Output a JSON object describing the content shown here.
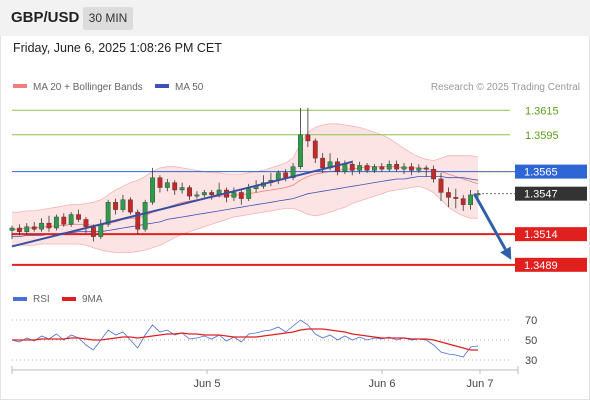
{
  "header": {
    "pair": "GBP/USD",
    "timeframe": "30 MIN",
    "datetime": "Friday, June 6, 2025 1:08:26 PM CET"
  },
  "legend": {
    "ma20_bb": "MA 20 + Bollinger Bands",
    "ma50": "MA 50",
    "credit": "Research © 2025 Trading Central",
    "rsi": "RSI",
    "rsi_ma": "9MA"
  },
  "colors": {
    "bull": "#2e9b48",
    "bear": "#c62828",
    "ma20": "#f08080",
    "ma50": "#3f51b5",
    "band_fill": "#fde4e4",
    "resistance": "#8bc34a",
    "support": "#e01f1f",
    "pivot": "#2e66d6",
    "current": "#333333",
    "trend": "#3a4fa0",
    "arrow": "#2e5fa8",
    "rsi_line": "#4a6fd6",
    "rsi_ma": "#e02020"
  },
  "chart_data": [
    {
      "type": "candlestick",
      "title": "GBP/USD",
      "timeframe": "30 MIN",
      "x_ticks": [
        "Jun 5",
        "Jun 6",
        "Jun 7"
      ],
      "ylim": [
        1.3475,
        1.3625
      ],
      "levels": [
        {
          "value": 1.3615,
          "label": "1.3615",
          "kind": "resistance"
        },
        {
          "value": 1.3595,
          "label": "1.3595",
          "kind": "resistance"
        },
        {
          "value": 1.3565,
          "label": "1.3565",
          "kind": "pivot"
        },
        {
          "value": 1.3547,
          "label": "1.3547",
          "kind": "current"
        },
        {
          "value": 1.3514,
          "label": "1.3514",
          "kind": "support"
        },
        {
          "value": 1.3489,
          "label": "1.3489",
          "kind": "support"
        }
      ],
      "trendline": [
        [
          0,
          1.3504
        ],
        [
          46,
          1.3573
        ]
      ],
      "forecast_arrow": [
        [
          62.5,
          1.3547
        ],
        [
          67.5,
          1.3493
        ]
      ],
      "series": [
        {
          "name": "MA 20 + Bollinger Bands",
          "kind": "ma20_bb"
        },
        {
          "name": "MA 50",
          "kind": "ma50"
        }
      ],
      "candles": [
        [
          1.3517,
          1.3519,
          1.3521,
          1.351
        ],
        [
          1.3519,
          1.3516,
          1.3522,
          1.3513
        ],
        [
          1.3516,
          1.352,
          1.3523,
          1.3514
        ],
        [
          1.352,
          1.3518,
          1.3524,
          1.3516
        ],
        [
          1.3518,
          1.3523,
          1.3527,
          1.3516
        ],
        [
          1.3523,
          1.3519,
          1.3529,
          1.3516
        ],
        [
          1.3519,
          1.3528,
          1.353,
          1.3517
        ],
        [
          1.3528,
          1.3522,
          1.3531,
          1.352
        ],
        [
          1.3522,
          1.353,
          1.3532,
          1.352
        ],
        [
          1.353,
          1.3526,
          1.3534,
          1.3524
        ],
        [
          1.3526,
          1.352,
          1.3528,
          1.3515
        ],
        [
          1.352,
          1.3512,
          1.3522,
          1.3508
        ],
        [
          1.3512,
          1.3522,
          1.3526,
          1.351
        ],
        [
          1.3522,
          1.354,
          1.3542,
          1.352
        ],
        [
          1.354,
          1.3534,
          1.3543,
          1.353
        ],
        [
          1.3534,
          1.3542,
          1.3546,
          1.3532
        ],
        [
          1.3542,
          1.3532,
          1.3544,
          1.353
        ],
        [
          1.3532,
          1.3518,
          1.3534,
          1.3514
        ],
        [
          1.3518,
          1.354,
          1.3542,
          1.3516
        ],
        [
          1.354,
          1.356,
          1.3568,
          1.3538
        ],
        [
          1.356,
          1.3552,
          1.3562,
          1.3548
        ],
        [
          1.3552,
          1.3556,
          1.3559,
          1.3549
        ],
        [
          1.3556,
          1.355,
          1.3558,
          1.3546
        ],
        [
          1.355,
          1.3552,
          1.3556,
          1.3547
        ],
        [
          1.3552,
          1.3545,
          1.3554,
          1.3542
        ],
        [
          1.3545,
          1.3546,
          1.3549,
          1.3543
        ],
        [
          1.3546,
          1.3548,
          1.355,
          1.3544
        ],
        [
          1.3548,
          1.3546,
          1.355,
          1.3542
        ],
        [
          1.3546,
          1.355,
          1.3556,
          1.3544
        ],
        [
          1.355,
          1.3544,
          1.3552,
          1.354
        ],
        [
          1.3544,
          1.3548,
          1.3552,
          1.3541
        ],
        [
          1.3548,
          1.3543,
          1.3551,
          1.3538
        ],
        [
          1.3543,
          1.3551,
          1.3555,
          1.3541
        ],
        [
          1.3551,
          1.3553,
          1.3558,
          1.3548
        ],
        [
          1.3553,
          1.3556,
          1.3562,
          1.3551
        ],
        [
          1.3556,
          1.3558,
          1.3564,
          1.3553
        ],
        [
          1.3558,
          1.3564,
          1.3566,
          1.3555
        ],
        [
          1.3564,
          1.356,
          1.3567,
          1.3557
        ],
        [
          1.356,
          1.3569,
          1.3572,
          1.3558
        ],
        [
          1.3569,
          1.3595,
          1.3617,
          1.3567
        ],
        [
          1.3595,
          1.359,
          1.3617,
          1.3585
        ],
        [
          1.359,
          1.3576,
          1.3592,
          1.3572
        ],
        [
          1.3576,
          1.3568,
          1.358,
          1.3564
        ],
        [
          1.3568,
          1.3573,
          1.358,
          1.3566
        ],
        [
          1.3573,
          1.3565,
          1.3576,
          1.3562
        ],
        [
          1.3565,
          1.3571,
          1.3574,
          1.3563
        ],
        [
          1.3571,
          1.3566,
          1.3574,
          1.3562
        ],
        [
          1.3566,
          1.357,
          1.3573,
          1.3563
        ],
        [
          1.357,
          1.3566,
          1.3572,
          1.3564
        ],
        [
          1.3566,
          1.3569,
          1.3571,
          1.3564
        ],
        [
          1.3569,
          1.3567,
          1.3572,
          1.3565
        ],
        [
          1.3567,
          1.3571,
          1.3574,
          1.3565
        ],
        [
          1.3571,
          1.3567,
          1.3574,
          1.3565
        ],
        [
          1.3567,
          1.3569,
          1.3572,
          1.3563
        ],
        [
          1.3569,
          1.3566,
          1.3572,
          1.3562
        ],
        [
          1.3566,
          1.3568,
          1.3571,
          1.3564
        ],
        [
          1.3568,
          1.3567,
          1.357,
          1.3561
        ],
        [
          1.3567,
          1.3559,
          1.357,
          1.3556
        ],
        [
          1.3559,
          1.3548,
          1.3564,
          1.3541
        ],
        [
          1.3548,
          1.3544,
          1.3552,
          1.3536
        ],
        [
          1.3544,
          1.3543,
          1.3551,
          1.3535
        ],
        [
          1.3543,
          1.3538,
          1.3546,
          1.3533
        ],
        [
          1.3538,
          1.3546,
          1.355,
          1.3534
        ],
        [
          1.3546,
          1.3547,
          1.355,
          1.3543
        ]
      ],
      "ma20": [
        1.3518,
        1.3518,
        1.3519,
        1.3519,
        1.352,
        1.352,
        1.3521,
        1.3521,
        1.3522,
        1.3522,
        1.3522,
        1.3521,
        1.3521,
        1.3523,
        1.3524,
        1.3526,
        1.3527,
        1.3527,
        1.3529,
        1.3532,
        1.3534,
        1.3536,
        1.3538,
        1.354,
        1.3541,
        1.3542,
        1.3543,
        1.3544,
        1.3545,
        1.3545,
        1.3546,
        1.3546,
        1.3547,
        1.3548,
        1.3549,
        1.355,
        1.3551,
        1.3552,
        1.3554,
        1.3558,
        1.3561,
        1.3563,
        1.3564,
        1.3565,
        1.3566,
        1.3567,
        1.3567,
        1.3568,
        1.3569,
        1.3569,
        1.3569,
        1.3569,
        1.3569,
        1.3568,
        1.3568,
        1.3568,
        1.3567,
        1.3566,
        1.3565,
        1.3563,
        1.3561,
        1.3559,
        1.3557,
        1.3555
      ],
      "bb_upper": [
        1.3532,
        1.3532,
        1.3533,
        1.3533,
        1.3534,
        1.3535,
        1.3536,
        1.3537,
        1.3538,
        1.3538,
        1.3539,
        1.354,
        1.3542,
        1.3546,
        1.355,
        1.3553,
        1.3556,
        1.3558,
        1.3561,
        1.3565,
        1.3568,
        1.3569,
        1.3569,
        1.3568,
        1.3567,
        1.3566,
        1.3565,
        1.3564,
        1.3564,
        1.3563,
        1.3563,
        1.3563,
        1.3564,
        1.3565,
        1.3566,
        1.3568,
        1.357,
        1.3572,
        1.3576,
        1.3588,
        1.3597,
        1.3601,
        1.3603,
        1.3604,
        1.3604,
        1.3603,
        1.3602,
        1.3601,
        1.3599,
        1.3597,
        1.3595,
        1.3592,
        1.3588,
        1.3584,
        1.358,
        1.3577,
        1.3575,
        1.3574,
        1.3576,
        1.3578,
        1.3578,
        1.3578,
        1.3578,
        1.3577
      ],
      "bb_lower": [
        1.3505,
        1.3505,
        1.3505,
        1.3505,
        1.3506,
        1.3506,
        1.3506,
        1.3506,
        1.3506,
        1.3506,
        1.3505,
        1.3503,
        1.3501,
        1.35,
        1.3499,
        1.3499,
        1.3499,
        1.35,
        1.3501,
        1.3503,
        1.3505,
        1.3508,
        1.3511,
        1.3514,
        1.3516,
        1.3518,
        1.352,
        1.3522,
        1.3524,
        1.3526,
        1.3528,
        1.3529,
        1.353,
        1.3531,
        1.3532,
        1.3533,
        1.3534,
        1.3535,
        1.3535,
        1.3533,
        1.353,
        1.3529,
        1.353,
        1.3532,
        1.3534,
        1.3536,
        1.3539,
        1.3541,
        1.3543,
        1.3545,
        1.3547,
        1.3549,
        1.355,
        1.3551,
        1.3552,
        1.3553,
        1.3551,
        1.3548,
        1.3542,
        1.3536,
        1.3532,
        1.3529,
        1.3527,
        1.3527
      ],
      "ma50": [
        1.3512,
        1.3512,
        1.3513,
        1.3513,
        1.3513,
        1.3514,
        1.3514,
        1.3515,
        1.3515,
        1.3516,
        1.3516,
        1.3516,
        1.3516,
        1.3517,
        1.3518,
        1.3519,
        1.352,
        1.3521,
        1.3522,
        1.3523,
        1.3524,
        1.3526,
        1.3527,
        1.3528,
        1.3529,
        1.353,
        1.3531,
        1.3532,
        1.3533,
        1.3534,
        1.3535,
        1.3536,
        1.3537,
        1.3538,
        1.3539,
        1.354,
        1.3541,
        1.3542,
        1.3543,
        1.3545,
        1.3547,
        1.3548,
        1.3549,
        1.355,
        1.3551,
        1.3552,
        1.3553,
        1.3554,
        1.3555,
        1.3556,
        1.3557,
        1.3558,
        1.3559,
        1.3559,
        1.356,
        1.3561,
        1.3561,
        1.3561,
        1.3561,
        1.356,
        1.356,
        1.356,
        1.3559,
        1.3558
      ]
    },
    {
      "type": "line",
      "title": "RSI",
      "ylim": [
        25,
        75
      ],
      "y_ticks": [
        70,
        50,
        30
      ],
      "series": [
        {
          "name": "RSI",
          "values": [
            50,
            48,
            52,
            49,
            54,
            51,
            56,
            50,
            55,
            52,
            45,
            40,
            50,
            60,
            55,
            58,
            50,
            42,
            55,
            65,
            58,
            60,
            55,
            57,
            51,
            52,
            54,
            51,
            55,
            49,
            53,
            48,
            56,
            57,
            59,
            60,
            63,
            58,
            64,
            70,
            65,
            56,
            52,
            55,
            50,
            54,
            50,
            53,
            50,
            52,
            51,
            53,
            50,
            52,
            50,
            51,
            50,
            45,
            38,
            36,
            35,
            33,
            43,
            44
          ]
        },
        {
          "name": "9MA",
          "values": [
            50,
            50,
            50,
            50,
            51,
            51,
            51,
            51,
            52,
            52,
            51,
            50,
            50,
            51,
            52,
            53,
            53,
            52,
            53,
            54,
            55,
            56,
            56,
            57,
            56,
            56,
            55,
            55,
            55,
            54,
            53,
            53,
            53,
            53,
            54,
            55,
            56,
            57,
            58,
            60,
            61,
            61,
            61,
            60,
            59,
            58,
            56,
            55,
            54,
            53,
            52,
            52,
            52,
            52,
            51,
            51,
            51,
            50,
            48,
            46,
            44,
            42,
            40,
            40
          ]
        }
      ]
    }
  ]
}
